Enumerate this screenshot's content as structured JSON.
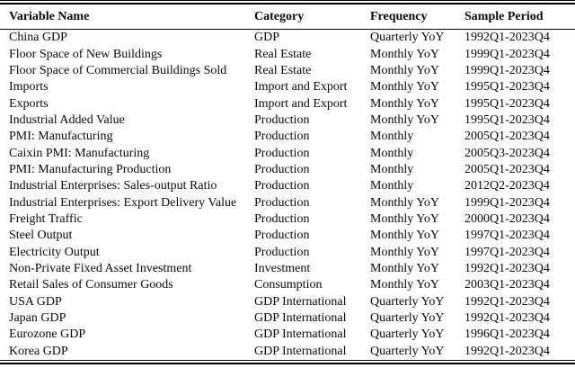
{
  "table": {
    "columns": [
      "Variable Name",
      "Category",
      "Frequency",
      "Sample Period"
    ],
    "column_keys": [
      "variable-name",
      "category",
      "frequency",
      "sample-period"
    ],
    "rows": [
      [
        "China GDP",
        "GDP",
        "Quarterly YoY",
        "1992Q1-2023Q4"
      ],
      [
        "Floor Space of New Buildings",
        "Real Estate",
        "Monthly YoY",
        "1999Q1-2023Q4"
      ],
      [
        "Floor Space of Commercial Buildings Sold",
        "Real Estate",
        "Monthly YoY",
        "1999Q1-2023Q4"
      ],
      [
        "Imports",
        "Import and Export",
        "Monthly YoY",
        "1995Q1-2023Q4"
      ],
      [
        "Exports",
        "Import and Export",
        "Monthly YoY",
        "1995Q1-2023Q4"
      ],
      [
        "Industrial Added Value",
        "Production",
        "Monthly YoY",
        "1995Q1-2023Q4"
      ],
      [
        "PMI: Manufacturing",
        "Production",
        "Monthly",
        "2005Q1-2023Q4"
      ],
      [
        "Caixin PMI: Manufacturing",
        "Production",
        "Monthly",
        "2005Q3-2023Q4"
      ],
      [
        "PMI: Manufacturing Production",
        "Production",
        "Monthly",
        "2005Q1-2023Q4"
      ],
      [
        "Industrial Enterprises: Sales-output Ratio",
        "Production",
        "Monthly",
        "2012Q2-2023Q4"
      ],
      [
        "Industrial Enterprises: Export Delivery Value",
        "Production",
        "Monthly YoY",
        "1999Q1-2023Q4"
      ],
      [
        "Freight Traffic",
        "Production",
        "Monthly YoY",
        "2000Q1-2023Q4"
      ],
      [
        "Steel Output",
        "Production",
        "Monthly YoY",
        "1997Q1-2023Q4"
      ],
      [
        "Electricity Output",
        "Production",
        "Monthly YoY",
        "1997Q1-2023Q4"
      ],
      [
        "Non-Private Fixed Asset Investment",
        "Investment",
        "Monthly YoY",
        "1992Q1-2023Q4"
      ],
      [
        "Retail Sales of Consumer Goods",
        "Consumption",
        "Monthly YoY",
        "2003Q1-2023Q4"
      ],
      [
        "USA GDP",
        "GDP International",
        "Quarterly YoY",
        "1992Q1-2023Q4"
      ],
      [
        "Japan GDP",
        "GDP International",
        "Quarterly YoY",
        "1992Q1-2023Q4"
      ],
      [
        "Eurozone GDP",
        "GDP International",
        "Quarterly YoY",
        "1996Q1-2023Q4"
      ],
      [
        "Korea GDP",
        "GDP International",
        "Quarterly YoY",
        "1992Q1-2023Q4"
      ]
    ],
    "colors": {
      "rule": "#000000",
      "text": "#0a0a0a",
      "background": "#ffffff"
    }
  }
}
